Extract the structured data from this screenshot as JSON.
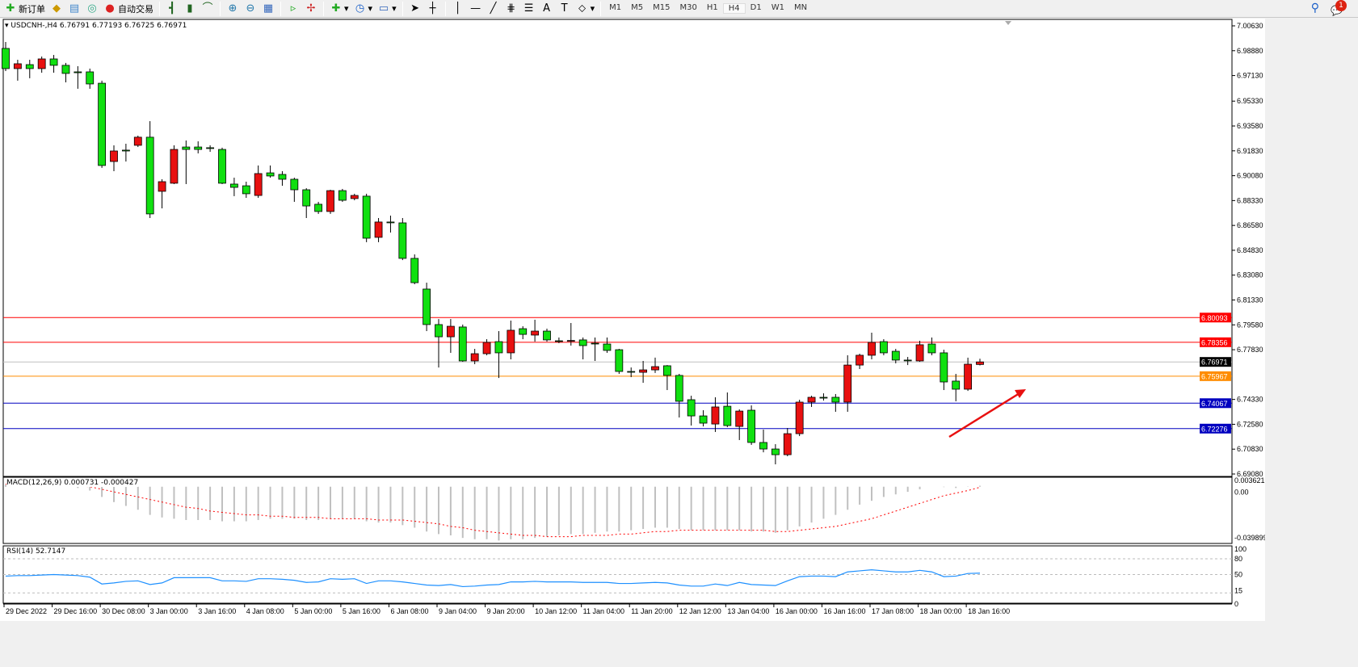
{
  "toolbar": {
    "new_order": "新订单",
    "auto_trading": "自动交易",
    "icons": [
      "new-order-icon",
      "market-watch-icon",
      "data-window-icon",
      "signals-icon",
      "auto-trading-icon",
      "bar-chart-icon",
      "candlestick-icon",
      "line-chart-icon",
      "zoom-in-icon",
      "zoom-out-icon",
      "tile-windows-icon",
      "chart-shift-icon",
      "autoscroll-icon",
      "new-chart-icon",
      "periods-icon",
      "templates-icon",
      "cursor-icon",
      "crosshair-icon",
      "vertical-line-icon",
      "horizontal-line-icon",
      "trendline-icon",
      "fibonacci-icon",
      "fibo-lines-icon",
      "text-icon",
      "text-label-icon",
      "arrows-icon"
    ],
    "timeframes": [
      "M1",
      "M5",
      "M15",
      "M30",
      "H1",
      "H4",
      "D1",
      "W1",
      "MN"
    ],
    "active_timeframe": "H4",
    "notification_count": "1"
  },
  "chart": {
    "header": "USDCNH-,H4  6.76791 6.77193 6.76725 6.76971",
    "colors": {
      "bull": "#e81010",
      "bear": "#10e010",
      "bid": "#c0c0c0",
      "macd_hist": "#c0c0c0",
      "macd_signal": "#ff0000",
      "rsi": "#1e90ff"
    }
  },
  "chart_data": [
    {
      "type": "candlestick",
      "symbol": "USDCNH-",
      "timeframe": "H4",
      "ylim": [
        6.6908,
        7.0063
      ],
      "y_ticks": [
        "7.00630",
        "6.98880",
        "6.97130",
        "6.95330",
        "6.93580",
        "6.91830",
        "6.90080",
        "6.88330",
        "6.86580",
        "6.84830",
        "6.83080",
        "6.81330",
        "6.79580",
        "6.77830",
        "6.74330",
        "6.72580",
        "6.70830",
        "6.69080"
      ],
      "x_ticks": [
        "29 Dec 2022",
        "29 Dec 16:00",
        "30 Dec 08:00",
        "3 Jan 00:00",
        "3 Jan 16:00",
        "4 Jan 08:00",
        "5 Jan 00:00",
        "5 Jan 16:00",
        "6 Jan 08:00",
        "9 Jan 04:00",
        "9 Jan 20:00",
        "10 Jan 12:00",
        "11 Jan 04:00",
        "11 Jan 20:00",
        "12 Jan 12:00",
        "13 Jan 04:00",
        "16 Jan 00:00",
        "16 Jan 16:00",
        "17 Jan 08:00",
        "18 Jan 00:00",
        "18 Jan 16:00"
      ],
      "ohlc": [
        [
          6.9904,
          6.9949,
          6.9745,
          6.9762
        ],
        [
          6.9762,
          6.9824,
          6.9677,
          6.9796
        ],
        [
          6.979,
          6.9824,
          6.9694,
          6.9762
        ],
        [
          6.9762,
          6.9847,
          6.9733,
          6.983
        ],
        [
          6.983,
          6.9858,
          6.9733,
          6.9785
        ],
        [
          6.9785,
          6.9802,
          6.9665,
          6.9728
        ],
        [
          6.9739,
          6.9779,
          6.962,
          6.9733
        ],
        [
          6.9739,
          6.9762,
          6.962,
          6.9654
        ],
        [
          6.9659,
          6.9677,
          6.9063,
          6.908
        ],
        [
          6.9108,
          6.9222,
          6.904,
          6.9182
        ],
        [
          6.9188,
          6.9233,
          6.9108,
          6.9182
        ],
        [
          6.9222,
          6.929,
          6.921,
          6.9279
        ],
        [
          6.9279,
          6.9392,
          6.871,
          6.8739
        ],
        [
          6.8898,
          6.8983,
          6.8778,
          6.8966
        ],
        [
          6.8955,
          6.9222,
          6.8949,
          6.9193
        ],
        [
          6.921,
          6.9256,
          6.8949,
          6.9193
        ],
        [
          6.921,
          6.925,
          6.9165,
          6.9193
        ],
        [
          6.9205,
          6.9222,
          6.9176,
          6.92
        ],
        [
          6.9193,
          6.9205,
          6.8949,
          6.8955
        ],
        [
          6.8949,
          6.8994,
          6.8864,
          6.8926
        ],
        [
          6.8937,
          6.8966,
          6.8852,
          6.8881
        ],
        [
          6.8869,
          6.908,
          6.8852,
          6.9023
        ],
        [
          6.9028,
          6.908,
          6.8994,
          6.9006
        ],
        [
          6.9017,
          6.904,
          6.8937,
          6.8983
        ],
        [
          6.8983,
          6.8994,
          6.8824,
          6.8909
        ],
        [
          6.8909,
          6.892,
          6.871,
          6.8795
        ],
        [
          6.8807,
          6.8824,
          6.8739,
          6.8756
        ],
        [
          6.8756,
          6.8909,
          6.8739,
          6.8903
        ],
        [
          6.8903,
          6.8915,
          6.8824,
          6.8835
        ],
        [
          6.8847,
          6.8881,
          6.8835,
          6.8869
        ],
        [
          6.8864,
          6.8881,
          6.854,
          6.8568
        ],
        [
          6.8574,
          6.871,
          6.854,
          6.8682
        ],
        [
          6.8682,
          6.8727,
          6.8608,
          6.868
        ],
        [
          6.8676,
          6.871,
          6.8414,
          6.8426
        ],
        [
          6.8426,
          6.8454,
          6.8244,
          6.8255
        ],
        [
          6.821,
          6.8255,
          6.7914,
          6.796
        ],
        [
          6.796,
          6.7999,
          6.7658,
          6.7874
        ],
        [
          6.7874,
          6.7999,
          6.7761,
          6.7948
        ],
        [
          6.7943,
          6.796,
          6.7698,
          6.7704
        ],
        [
          6.7704,
          6.7789,
          6.7681,
          6.7755
        ],
        [
          6.7755,
          6.7857,
          6.7744,
          6.7835
        ],
        [
          6.784,
          6.7914,
          6.7584,
          6.7761
        ],
        [
          6.7761,
          6.7988,
          6.7715,
          6.792
        ],
        [
          6.7931,
          6.7948,
          6.7857,
          6.7891
        ],
        [
          6.7886,
          6.7994,
          6.784,
          6.7914
        ],
        [
          6.7914,
          6.7931,
          6.784,
          6.7852
        ],
        [
          6.7846,
          6.7869,
          6.7829,
          6.7844
        ],
        [
          6.7846,
          6.7971,
          6.7812,
          6.7848
        ],
        [
          6.7852,
          6.7869,
          6.7715,
          6.7812
        ],
        [
          6.7829,
          6.7869,
          6.7704,
          6.7827
        ],
        [
          6.7823,
          6.7869,
          6.7761,
          6.7778
        ],
        [
          6.7783,
          6.7789,
          6.7613,
          6.763
        ],
        [
          6.763,
          6.7658,
          6.759,
          6.7628
        ],
        [
          6.7624,
          6.7704,
          6.755,
          6.7641
        ],
        [
          6.7641,
          6.7727,
          6.7619,
          6.7664
        ],
        [
          6.767,
          6.7675,
          6.7499,
          6.7602
        ],
        [
          6.7602,
          6.7613,
          6.7306,
          6.742
        ],
        [
          6.7431,
          6.7459,
          6.7249,
          6.7317
        ],
        [
          6.7317,
          6.7357,
          6.7243,
          6.7266
        ],
        [
          6.726,
          6.7448,
          6.7204,
          6.738
        ],
        [
          6.7385,
          6.7482,
          6.7238,
          6.7249
        ],
        [
          6.7243,
          6.7363,
          6.7147,
          6.7351
        ],
        [
          6.7357,
          6.7391,
          6.7113,
          6.713
        ],
        [
          6.713,
          6.7221,
          6.7061,
          6.7084
        ],
        [
          6.7084,
          6.7118,
          6.6976,
          6.7044
        ],
        [
          6.7044,
          6.7232,
          6.7033,
          6.7192
        ],
        [
          6.7192,
          6.7431,
          6.7175,
          6.7414
        ],
        [
          6.7414,
          6.7459,
          6.738,
          6.7448
        ],
        [
          6.7448,
          6.7476,
          6.7425,
          6.7446
        ],
        [
          6.7448,
          6.7471,
          6.7346,
          6.7414
        ],
        [
          6.7414,
          6.7744,
          6.7346,
          6.7675
        ],
        [
          6.7675,
          6.7755,
          6.7647,
          6.7744
        ],
        [
          6.7744,
          6.7903,
          6.7715,
          6.7835
        ],
        [
          6.784,
          6.7857,
          6.7744,
          6.7761
        ],
        [
          6.7772,
          6.7789,
          6.7687,
          6.771
        ],
        [
          6.771,
          6.7732,
          6.7675,
          6.7706
        ],
        [
          6.7704,
          6.7846,
          6.7698,
          6.7818
        ],
        [
          6.7823,
          6.7869,
          6.7744,
          6.7761
        ],
        [
          6.7761,
          6.7783,
          6.7499,
          6.7556
        ],
        [
          6.7562,
          6.7613,
          6.742,
          6.7505
        ],
        [
          6.7505,
          6.7727,
          6.7493,
          6.7681
        ],
        [
          6.76791,
          6.77193,
          6.76725,
          6.76971
        ]
      ],
      "levels": [
        {
          "price": "6.80093",
          "color": "#ff0000"
        },
        {
          "price": "6.78356",
          "color": "#ff0000"
        },
        {
          "price": "6.76971",
          "color": "#c0c0c0",
          "label_bg": "#000000"
        },
        {
          "price": "6.75967",
          "color": "#ff8c00"
        },
        {
          "price": "6.74067",
          "color": "#0000c0"
        },
        {
          "price": "6.72276",
          "color": "#0000c0"
        }
      ],
      "annotation": "red upward arrow"
    },
    {
      "type": "macd",
      "label": "MACD(12,26,9) 0.000731 -0.000427",
      "ylim": [
        -0.039899,
        0.003621
      ],
      "y_ticks": [
        "0.003621",
        "0.00",
        "-0.039899"
      ],
      "macd": [
        0.0015,
        0.001,
        0.0008,
        0.0005,
        0.0003,
        0,
        -0.001,
        -0.003,
        -0.008,
        -0.012,
        -0.015,
        -0.018,
        -0.022,
        -0.024,
        -0.025,
        -0.026,
        -0.026,
        -0.026,
        -0.027,
        -0.027,
        -0.027,
        -0.026,
        -0.025,
        -0.025,
        -0.025,
        -0.026,
        -0.026,
        -0.025,
        -0.025,
        -0.025,
        -0.027,
        -0.028,
        -0.028,
        -0.03,
        -0.032,
        -0.035,
        -0.037,
        -0.038,
        -0.04,
        -0.041,
        -0.041,
        -0.042,
        -0.041,
        -0.041,
        -0.04,
        -0.039,
        -0.038,
        -0.037,
        -0.037,
        -0.036,
        -0.035,
        -0.035,
        -0.034,
        -0.033,
        -0.032,
        -0.032,
        -0.033,
        -0.034,
        -0.034,
        -0.034,
        -0.034,
        -0.034,
        -0.035,
        -0.035,
        -0.036,
        -0.034,
        -0.031,
        -0.028,
        -0.025,
        -0.022,
        -0.018,
        -0.014,
        -0.011,
        -0.008,
        -0.006,
        -0.004,
        -0.002,
        0.0,
        -0.0003,
        -0.001,
        0.0002,
        0.000731
      ],
      "signal": [
        0.002,
        0.002,
        0.0018,
        0.0015,
        0.0012,
        0.0008,
        0.0004,
        0,
        -0.002,
        -0.004,
        -0.006,
        -0.008,
        -0.01,
        -0.012,
        -0.014,
        -0.016,
        -0.017,
        -0.019,
        -0.02,
        -0.021,
        -0.022,
        -0.022,
        -0.023,
        -0.023,
        -0.024,
        -0.024,
        -0.024,
        -0.025,
        -0.025,
        -0.025,
        -0.025,
        -0.026,
        -0.026,
        -0.026,
        -0.027,
        -0.028,
        -0.029,
        -0.031,
        -0.032,
        -0.034,
        -0.035,
        -0.036,
        -0.037,
        -0.038,
        -0.038,
        -0.039,
        -0.039,
        -0.039,
        -0.038,
        -0.038,
        -0.038,
        -0.037,
        -0.037,
        -0.036,
        -0.035,
        -0.035,
        -0.034,
        -0.034,
        -0.034,
        -0.034,
        -0.034,
        -0.034,
        -0.034,
        -0.034,
        -0.035,
        -0.035,
        -0.034,
        -0.033,
        -0.032,
        -0.031,
        -0.029,
        -0.027,
        -0.025,
        -0.022,
        -0.019,
        -0.016,
        -0.013,
        -0.01,
        -0.007,
        -0.005,
        -0.003,
        -0.000427
      ]
    },
    {
      "type": "line",
      "label": "RSI(14) 52.7147",
      "ylim": [
        0,
        100
      ],
      "y_ticks": [
        "100",
        "80",
        "50",
        "15",
        "0"
      ],
      "levels": [
        80,
        50,
        15
      ],
      "values": [
        47,
        48,
        48,
        49,
        50,
        49,
        48,
        45,
        32,
        34,
        37,
        38,
        31,
        34,
        44,
        44,
        44,
        44,
        38,
        38,
        37,
        42,
        42,
        41,
        39,
        35,
        36,
        42,
        41,
        42,
        33,
        38,
        38,
        36,
        33,
        30,
        29,
        31,
        27,
        28,
        30,
        31,
        36,
        36,
        37,
        36,
        36,
        36,
        35,
        35,
        35,
        33,
        33,
        34,
        35,
        34,
        30,
        28,
        28,
        32,
        29,
        35,
        31,
        30,
        29,
        38,
        46,
        47,
        47,
        46,
        55,
        57,
        59,
        57,
        55,
        55,
        58,
        55,
        46,
        47,
        52,
        52.7147
      ]
    }
  ]
}
